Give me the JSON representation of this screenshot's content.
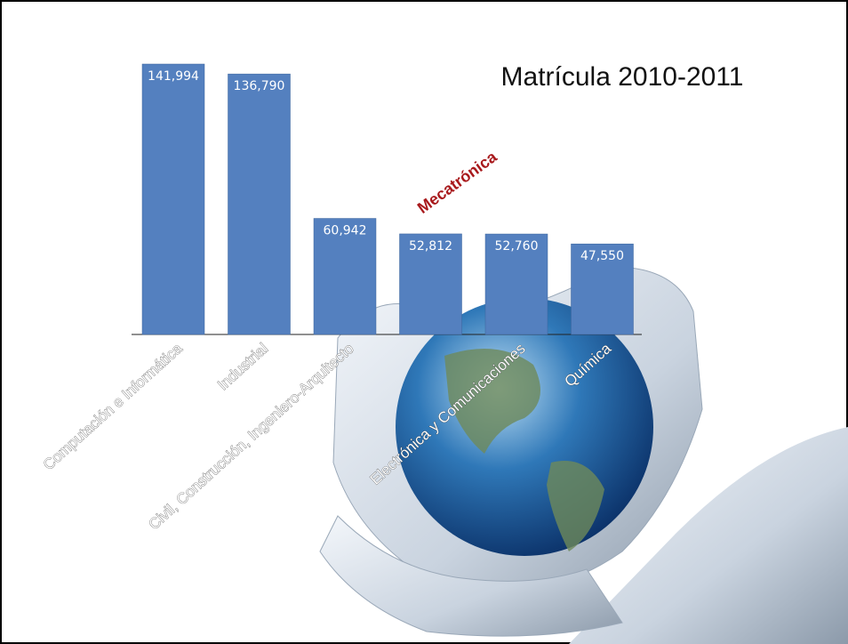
{
  "chart_data": {
    "type": "bar",
    "title": "Matrícula 2010-2011",
    "categories": [
      "Computación e Informática",
      "Industrial",
      "Civil, Construcción, Ingeniero-Arquitecto",
      null,
      "Electrónica y Comunicaciones",
      "Química"
    ],
    "values": [
      141994,
      136790,
      60942,
      52812,
      52760,
      47550
    ],
    "value_labels": [
      "141,994",
      "136,790",
      "60,942",
      "52,812",
      "52,760",
      "47,550"
    ],
    "color": "#5480bf",
    "annotation": "Mecatrónica"
  }
}
